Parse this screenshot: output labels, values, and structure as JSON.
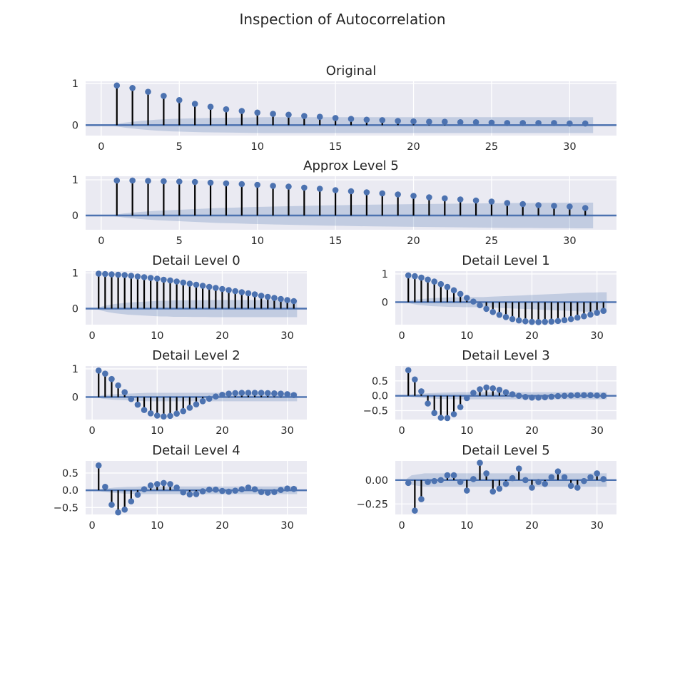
{
  "figure_title": "Inspection of Autocorrelation",
  "colors": {
    "marker": "#4c72b0",
    "stem": "#000000",
    "band": "#4c72b0",
    "panel_bg": "#eaeaf2"
  },
  "chart_data": [
    {
      "type": "scatter",
      "title": "Original",
      "lags": [
        1,
        2,
        3,
        4,
        5,
        6,
        7,
        8,
        9,
        10,
        11,
        12,
        13,
        14,
        15,
        16,
        17,
        18,
        19,
        20,
        21,
        22,
        23,
        24,
        25,
        26,
        27,
        28,
        29,
        30,
        31
      ],
      "values": [
        0.95,
        0.89,
        0.8,
        0.7,
        0.6,
        0.51,
        0.44,
        0.38,
        0.34,
        0.3,
        0.27,
        0.25,
        0.22,
        0.2,
        0.17,
        0.15,
        0.13,
        0.12,
        0.1,
        0.09,
        0.08,
        0.08,
        0.07,
        0.07,
        0.06,
        0.05,
        0.05,
        0.05,
        0.05,
        0.04,
        0.04
      ],
      "confint": [
        0.06,
        0.1,
        0.13,
        0.15,
        0.16,
        0.17,
        0.175,
        0.18,
        0.185,
        0.19,
        0.19,
        0.19,
        0.19,
        0.19,
        0.19,
        0.19,
        0.19,
        0.19,
        0.19,
        0.19,
        0.19,
        0.19,
        0.19,
        0.19,
        0.19,
        0.19,
        0.19,
        0.19,
        0.19,
        0.19,
        0.19
      ],
      "xlim": [
        -1,
        33
      ],
      "ylim": [
        -0.25,
        1.05
      ],
      "xticks": [
        0,
        5,
        10,
        15,
        20,
        25,
        30
      ],
      "yticks": [
        0,
        1
      ],
      "grid": true
    },
    {
      "type": "scatter",
      "title": "Approx Level 5",
      "lags": [
        1,
        2,
        3,
        4,
        5,
        6,
        7,
        8,
        9,
        10,
        11,
        12,
        13,
        14,
        15,
        16,
        17,
        18,
        19,
        20,
        21,
        22,
        23,
        24,
        25,
        26,
        27,
        28,
        29,
        30,
        31
      ],
      "values": [
        0.98,
        0.98,
        0.97,
        0.96,
        0.95,
        0.94,
        0.92,
        0.9,
        0.88,
        0.86,
        0.83,
        0.81,
        0.78,
        0.75,
        0.71,
        0.68,
        0.65,
        0.62,
        0.59,
        0.55,
        0.51,
        0.48,
        0.45,
        0.42,
        0.39,
        0.35,
        0.32,
        0.29,
        0.27,
        0.25,
        0.21
      ],
      "confint": [
        0.06,
        0.1,
        0.13,
        0.15,
        0.17,
        0.19,
        0.21,
        0.22,
        0.235,
        0.245,
        0.255,
        0.265,
        0.275,
        0.285,
        0.29,
        0.3,
        0.305,
        0.31,
        0.315,
        0.32,
        0.325,
        0.33,
        0.335,
        0.34,
        0.345,
        0.35,
        0.35,
        0.355,
        0.355,
        0.36,
        0.36
      ],
      "xlim": [
        -1,
        33
      ],
      "ylim": [
        -0.4,
        1.1
      ],
      "xticks": [
        0,
        5,
        10,
        15,
        20,
        25,
        30
      ],
      "yticks": [
        0,
        1
      ],
      "grid": true
    },
    {
      "type": "scatter",
      "title": "Detail Level 0",
      "lags": [
        1,
        2,
        3,
        4,
        5,
        6,
        7,
        8,
        9,
        10,
        11,
        12,
        13,
        14,
        15,
        16,
        17,
        18,
        19,
        20,
        21,
        22,
        23,
        24,
        25,
        26,
        27,
        28,
        29,
        30,
        31
      ],
      "values": [
        0.98,
        0.97,
        0.96,
        0.95,
        0.94,
        0.92,
        0.9,
        0.88,
        0.86,
        0.84,
        0.81,
        0.79,
        0.76,
        0.73,
        0.7,
        0.67,
        0.64,
        0.61,
        0.58,
        0.55,
        0.52,
        0.49,
        0.46,
        0.43,
        0.4,
        0.36,
        0.33,
        0.3,
        0.27,
        0.24,
        0.21
      ],
      "confint": [
        0.06,
        0.1,
        0.13,
        0.15,
        0.17,
        0.18,
        0.19,
        0.2,
        0.21,
        0.22,
        0.22,
        0.23,
        0.23,
        0.23,
        0.235,
        0.235,
        0.235,
        0.24,
        0.24,
        0.24,
        0.24,
        0.24,
        0.24,
        0.24,
        0.24,
        0.24,
        0.24,
        0.24,
        0.24,
        0.24,
        0.24
      ],
      "xlim": [
        -1,
        33
      ],
      "ylim": [
        -0.45,
        1.05
      ],
      "xticks": [
        0,
        10,
        20,
        30
      ],
      "yticks": [
        0,
        1
      ],
      "grid": true
    },
    {
      "type": "scatter",
      "title": "Detail Level 1",
      "lags": [
        1,
        2,
        3,
        4,
        5,
        6,
        7,
        8,
        9,
        10,
        11,
        12,
        13,
        14,
        15,
        16,
        17,
        18,
        19,
        20,
        21,
        22,
        23,
        24,
        25,
        26,
        27,
        28,
        29,
        30,
        31
      ],
      "values": [
        0.95,
        0.92,
        0.87,
        0.8,
        0.73,
        0.64,
        0.54,
        0.42,
        0.29,
        0.15,
        0.02,
        -0.11,
        -0.24,
        -0.35,
        -0.45,
        -0.53,
        -0.6,
        -0.65,
        -0.68,
        -0.7,
        -0.71,
        -0.7,
        -0.69,
        -0.67,
        -0.64,
        -0.6,
        -0.55,
        -0.5,
        -0.44,
        -0.38,
        -0.31
      ],
      "confint": [
        0.06,
        0.1,
        0.12,
        0.14,
        0.15,
        0.16,
        0.17,
        0.17,
        0.18,
        0.18,
        0.18,
        0.18,
        0.19,
        0.2,
        0.21,
        0.22,
        0.23,
        0.24,
        0.25,
        0.26,
        0.27,
        0.28,
        0.29,
        0.3,
        0.31,
        0.32,
        0.33,
        0.34,
        0.34,
        0.35,
        0.35
      ],
      "xlim": [
        -1,
        33
      ],
      "ylim": [
        -0.8,
        1.1
      ],
      "xticks": [
        0,
        10,
        20,
        30
      ],
      "yticks": [
        0,
        1
      ],
      "grid": true
    },
    {
      "type": "scatter",
      "title": "Detail Level 2",
      "lags": [
        1,
        2,
        3,
        4,
        5,
        6,
        7,
        8,
        9,
        10,
        11,
        12,
        13,
        14,
        15,
        16,
        17,
        18,
        19,
        20,
        21,
        22,
        23,
        24,
        25,
        26,
        27,
        28,
        29,
        30,
        31
      ],
      "values": [
        0.94,
        0.83,
        0.64,
        0.41,
        0.17,
        -0.07,
        -0.27,
        -0.46,
        -0.58,
        -0.66,
        -0.69,
        -0.67,
        -0.59,
        -0.5,
        -0.38,
        -0.26,
        -0.15,
        -0.06,
        0.02,
        0.08,
        0.12,
        0.14,
        0.15,
        0.15,
        0.15,
        0.15,
        0.14,
        0.13,
        0.12,
        0.1,
        0.07
      ],
      "confint": [
        0.06,
        0.08,
        0.1,
        0.11,
        0.12,
        0.13,
        0.14,
        0.15,
        0.15,
        0.15,
        0.15,
        0.15,
        0.15,
        0.15,
        0.15,
        0.15,
        0.15,
        0.15,
        0.15,
        0.15,
        0.15,
        0.15,
        0.15,
        0.15,
        0.15,
        0.15,
        0.15,
        0.15,
        0.15,
        0.15,
        0.15
      ],
      "xlim": [
        -1,
        33
      ],
      "ylim": [
        -0.8,
        1.1
      ],
      "xticks": [
        0,
        10,
        20,
        30
      ],
      "yticks": [
        0,
        1
      ],
      "grid": true
    },
    {
      "type": "scatter",
      "title": "Detail Level 3",
      "lags": [
        1,
        2,
        3,
        4,
        5,
        6,
        7,
        8,
        9,
        10,
        11,
        12,
        13,
        14,
        15,
        16,
        17,
        18,
        19,
        20,
        21,
        22,
        23,
        24,
        25,
        26,
        27,
        28,
        29,
        30,
        31
      ],
      "values": [
        0.86,
        0.55,
        0.15,
        -0.26,
        -0.58,
        -0.74,
        -0.75,
        -0.62,
        -0.38,
        -0.08,
        0.1,
        0.22,
        0.28,
        0.25,
        0.2,
        0.12,
        0.05,
        0.0,
        -0.04,
        -0.06,
        -0.06,
        -0.05,
        -0.03,
        -0.01,
        0.0,
        0.01,
        0.02,
        0.02,
        0.02,
        0.01,
        0.0
      ],
      "confint": [
        0.04,
        0.06,
        0.08,
        0.09,
        0.1,
        0.11,
        0.11,
        0.12,
        0.12,
        0.12,
        0.12,
        0.12,
        0.12,
        0.12,
        0.12,
        0.12,
        0.12,
        0.12,
        0.12,
        0.12,
        0.12,
        0.12,
        0.12,
        0.12,
        0.12,
        0.12,
        0.12,
        0.12,
        0.12,
        0.12,
        0.12
      ],
      "xlim": [
        -1,
        33
      ],
      "ylim": [
        -0.8,
        1.0
      ],
      "xticks": [
        0,
        10,
        20,
        30
      ],
      "yticks": [
        0.5,
        0.0,
        -0.5
      ],
      "ytick_labels": [
        "0.5",
        "0.0",
        "−0.5"
      ],
      "grid": true
    },
    {
      "type": "scatter",
      "title": "Detail Level 4",
      "lags": [
        1,
        2,
        3,
        4,
        5,
        6,
        7,
        8,
        9,
        10,
        11,
        12,
        13,
        14,
        15,
        16,
        17,
        18,
        19,
        20,
        21,
        22,
        23,
        24,
        25,
        26,
        27,
        28,
        29,
        30,
        31
      ],
      "values": [
        0.72,
        0.1,
        -0.42,
        -0.64,
        -0.56,
        -0.32,
        -0.13,
        0.03,
        0.14,
        0.18,
        0.21,
        0.18,
        0.08,
        -0.06,
        -0.12,
        -0.11,
        -0.03,
        0.02,
        0.02,
        -0.02,
        -0.04,
        -0.01,
        0.03,
        0.08,
        0.03,
        -0.05,
        -0.07,
        -0.05,
        0.01,
        0.05,
        0.04
      ],
      "confint": [
        0.04,
        0.06,
        0.08,
        0.09,
        0.1,
        0.1,
        0.11,
        0.11,
        0.11,
        0.11,
        0.11,
        0.11,
        0.11,
        0.11,
        0.11,
        0.11,
        0.11,
        0.11,
        0.11,
        0.11,
        0.11,
        0.11,
        0.11,
        0.11,
        0.11,
        0.11,
        0.11,
        0.11,
        0.11,
        0.11,
        0.11
      ],
      "xlim": [
        -1,
        33
      ],
      "ylim": [
        -0.7,
        0.85
      ],
      "xticks": [
        0,
        10,
        20,
        30
      ],
      "yticks": [
        0.5,
        0.0,
        -0.5
      ],
      "ytick_labels": [
        "0.5",
        "0.0",
        "−0.5"
      ],
      "grid": true
    },
    {
      "type": "scatter",
      "title": "Detail Level 5",
      "lags": [
        1,
        2,
        3,
        4,
        5,
        6,
        7,
        8,
        9,
        10,
        11,
        12,
        13,
        14,
        15,
        16,
        17,
        18,
        19,
        20,
        21,
        22,
        23,
        24,
        25,
        26,
        27,
        28,
        29,
        30,
        31
      ],
      "values": [
        -0.03,
        -0.32,
        -0.2,
        -0.02,
        -0.01,
        0.0,
        0.05,
        0.05,
        -0.02,
        -0.11,
        0.01,
        0.18,
        0.07,
        -0.12,
        -0.09,
        -0.04,
        0.02,
        0.12,
        0.0,
        -0.08,
        -0.02,
        -0.04,
        0.03,
        0.09,
        0.03,
        -0.06,
        -0.08,
        -0.01,
        0.03,
        0.07,
        0.01
      ],
      "confint": [
        0.05,
        0.06,
        0.07,
        0.07,
        0.07,
        0.07,
        0.07,
        0.07,
        0.07,
        0.07,
        0.07,
        0.07,
        0.07,
        0.07,
        0.07,
        0.07,
        0.07,
        0.07,
        0.07,
        0.07,
        0.07,
        0.07,
        0.07,
        0.07,
        0.07,
        0.07,
        0.07,
        0.07,
        0.07,
        0.07,
        0.07
      ],
      "xlim": [
        -1,
        33
      ],
      "ylim": [
        -0.36,
        0.2
      ],
      "xticks": [
        0,
        10,
        20,
        30
      ],
      "yticks": [
        0.0,
        -0.25
      ],
      "ytick_labels": [
        "0.00",
        "−0.25"
      ],
      "grid": true
    }
  ]
}
